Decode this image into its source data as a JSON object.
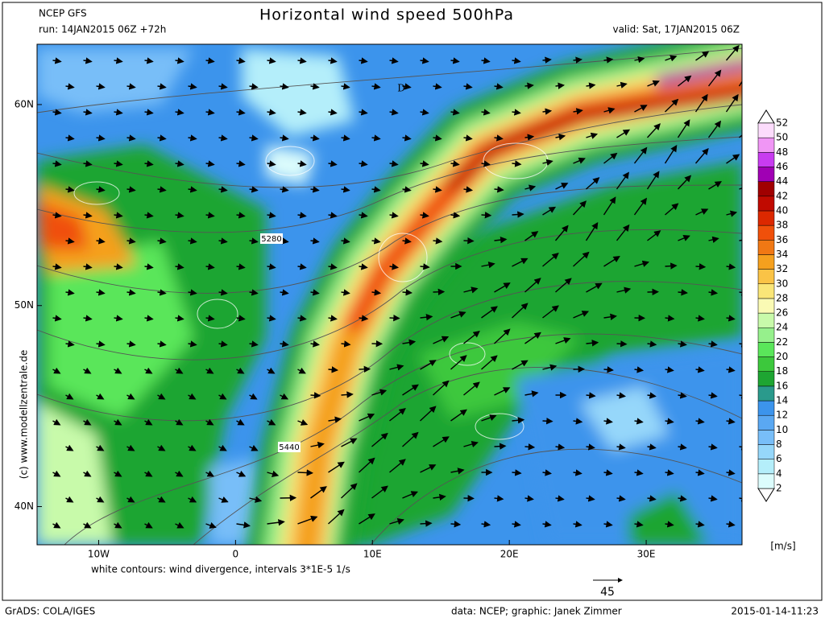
{
  "header": {
    "model": "NCEP GFS",
    "run": "run: 14JAN2015 06Z +72h",
    "title": "Horizontal wind speed 500hPa",
    "valid": "valid: Sat, 17JAN2015 06Z"
  },
  "map": {
    "xlim": [
      -14.5,
      37
    ],
    "ylim": [
      38.1,
      63
    ],
    "xticks": [
      {
        "value": -10,
        "label": "10W"
      },
      {
        "value": 0,
        "label": "0"
      },
      {
        "value": 10,
        "label": "10E"
      },
      {
        "value": 20,
        "label": "20E"
      },
      {
        "value": 30,
        "label": "30E"
      }
    ],
    "yticks": [
      {
        "value": 60,
        "label": "60N"
      },
      {
        "value": 50,
        "label": "50N"
      },
      {
        "value": 40,
        "label": "40N"
      }
    ],
    "contour_labels": [
      "5280",
      "5440"
    ],
    "low_label": "D"
  },
  "colorbar": {
    "levels": [
      2,
      4,
      6,
      8,
      10,
      12,
      14,
      16,
      18,
      20,
      22,
      24,
      26,
      28,
      30,
      32,
      34,
      36,
      38,
      40,
      42,
      44,
      46,
      48,
      50,
      52
    ],
    "colors": [
      "#dcfcfc",
      "#b4eefa",
      "#96d7fa",
      "#78bef8",
      "#5aa8f2",
      "#3c94ec",
      "#2a9a8c",
      "#1ea532",
      "#3cc83c",
      "#5ae65a",
      "#96f08c",
      "#c8faaa",
      "#fafab4",
      "#fae678",
      "#fac346",
      "#f5a01e",
      "#f07814",
      "#f0500a",
      "#dc2800",
      "#c00a00",
      "#a00000",
      "#a000b4",
      "#c83cf0",
      "#f096f5",
      "#fcdcfc"
    ],
    "unit": "[m/s]"
  },
  "footer": {
    "divergence_note": "white contours: wind divergence, intervals 3*1E-5 1/s",
    "copyright": "(c) www.modellzentrale.de",
    "reference_vector": "45",
    "software": "GrADS: COLA/IGES",
    "credits": "data: NCEP; graphic: Janek Zimmer",
    "timestamp": "2015-01-14-11:23"
  }
}
